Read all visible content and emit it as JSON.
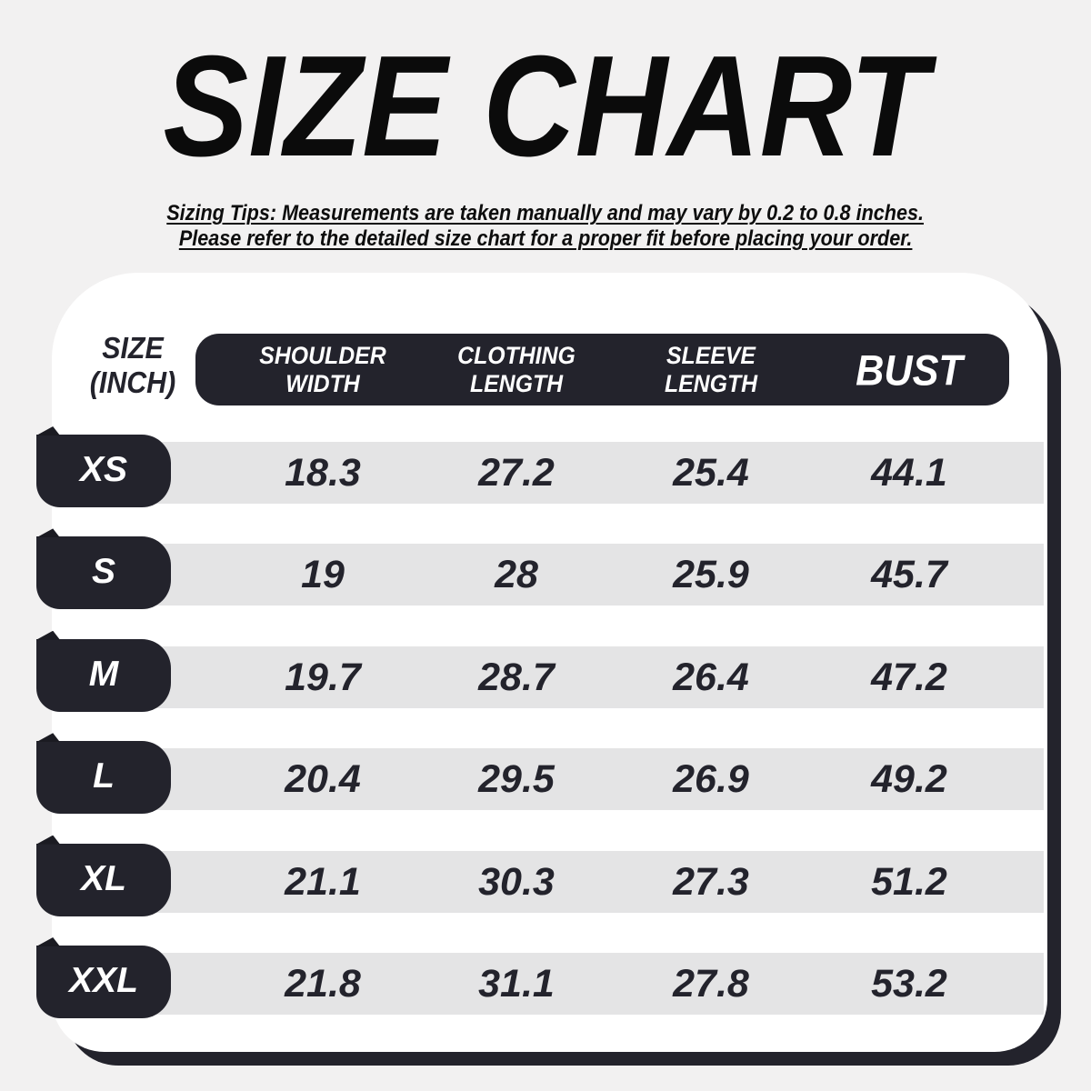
{
  "title": "SIZE CHART",
  "tips": {
    "line1": "Sizing Tips: Measurements are taken manually and may vary by 0.2 to 0.8 inches.",
    "line2": "Please refer to the detailed size chart for a proper fit before placing your order."
  },
  "table": {
    "unit_label": {
      "line1": "SIZE",
      "line2": "(INCH)"
    },
    "columns": [
      {
        "line1": "SHOULDER",
        "line2": "WIDTH"
      },
      {
        "line1": "CLOTHING",
        "line2": "LENGTH"
      },
      {
        "line1": "SLEEVE",
        "line2": "LENGTH"
      },
      {
        "line1": "BUST",
        "line2": ""
      }
    ],
    "rows": [
      {
        "size": "XS",
        "values": [
          "18.3",
          "27.2",
          "25.4",
          "44.1"
        ]
      },
      {
        "size": "S",
        "values": [
          "19",
          "28",
          "25.9",
          "45.7"
        ]
      },
      {
        "size": "M",
        "values": [
          "19.7",
          "28.7",
          "26.4",
          "47.2"
        ]
      },
      {
        "size": "L",
        "values": [
          "20.4",
          "29.5",
          "26.9",
          "49.2"
        ]
      },
      {
        "size": "XL",
        "values": [
          "21.1",
          "30.3",
          "27.3",
          "51.2"
        ]
      },
      {
        "size": "XXL",
        "values": [
          "21.8",
          "31.1",
          "27.8",
          "53.2"
        ]
      }
    ]
  },
  "colors": {
    "background": "#f2f1f1",
    "card": "#ffffff",
    "accent_dark": "#23232c",
    "stripe_gray": "#e4e4e5",
    "header_text": "#ffffff"
  },
  "chart_data": {
    "type": "table",
    "title": "SIZE CHART",
    "unit": "inch",
    "columns": [
      "SIZE (INCH)",
      "SHOULDER WIDTH",
      "CLOTHING LENGTH",
      "SLEEVE LENGTH",
      "BUST"
    ],
    "rows": [
      [
        "XS",
        18.3,
        27.2,
        25.4,
        44.1
      ],
      [
        "S",
        19,
        28,
        25.9,
        45.7
      ],
      [
        "M",
        19.7,
        28.7,
        26.4,
        47.2
      ],
      [
        "L",
        20.4,
        29.5,
        26.9,
        49.2
      ],
      [
        "XL",
        21.1,
        30.3,
        27.3,
        51.2
      ],
      [
        "XXL",
        21.8,
        31.1,
        27.8,
        53.2
      ]
    ],
    "notes": [
      "Sizing Tips: Measurements are taken manually and may vary by 0.2 to 0.8 inches.",
      "Please refer to the detailed size chart for a proper fit before placing your order."
    ]
  }
}
